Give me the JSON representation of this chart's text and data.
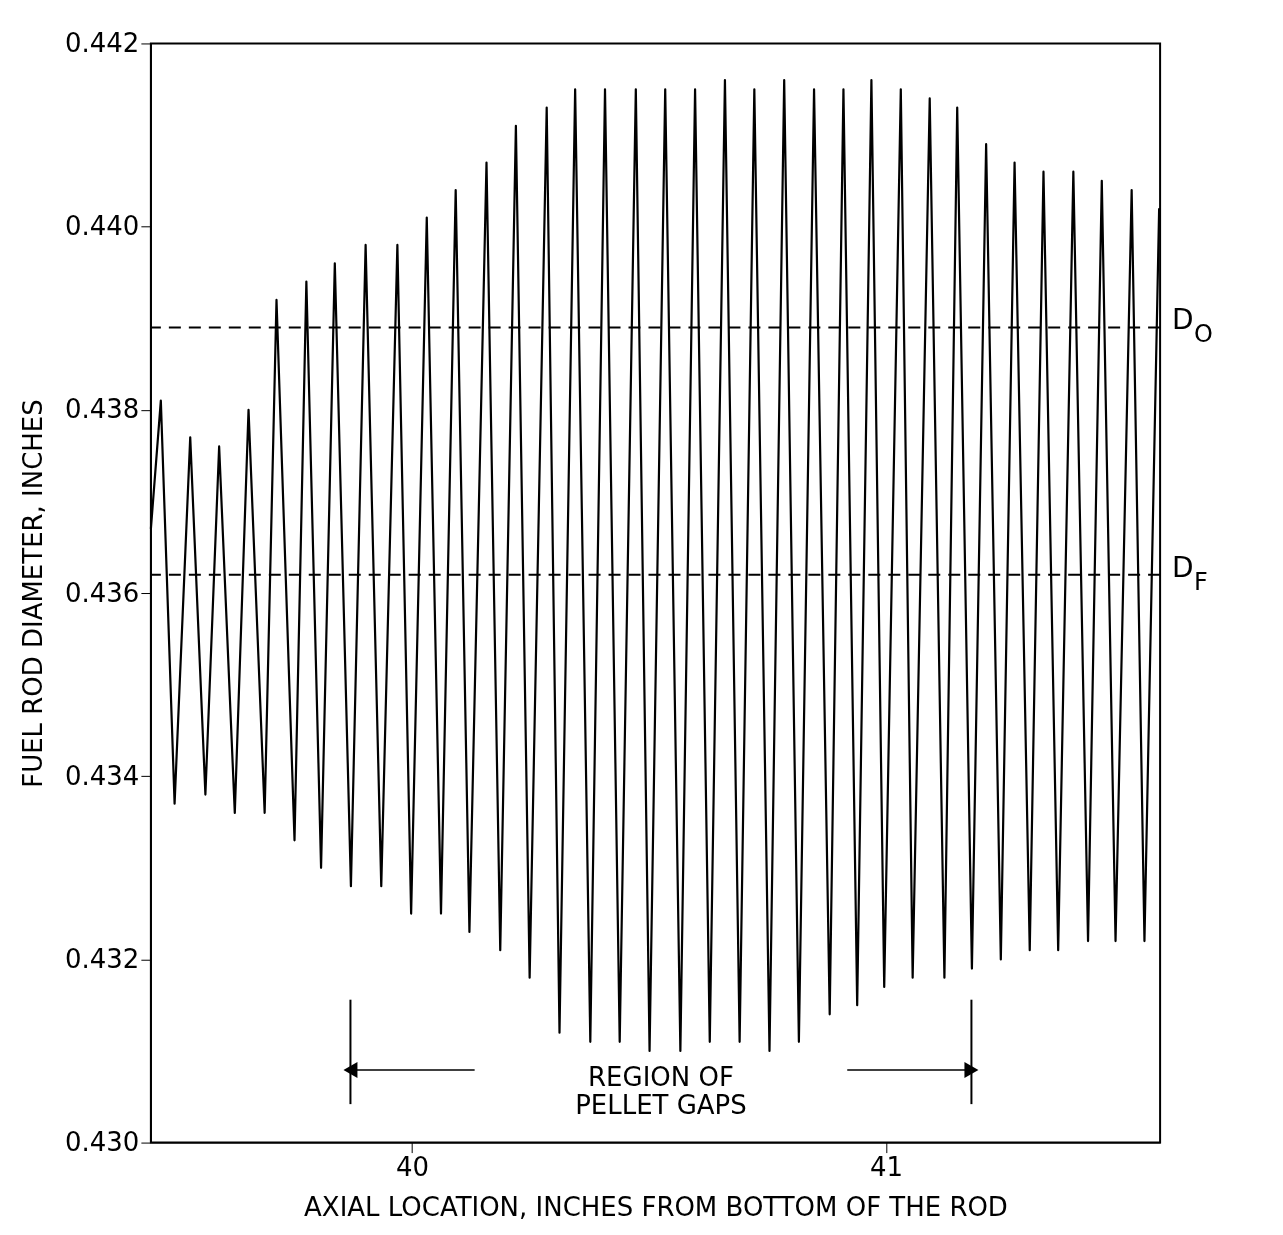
{
  "chart_data": {
    "type": "line",
    "xlabel": "AXIAL LOCATION, INCHES FROM BOTTOM OF THE ROD",
    "ylabel": "FUEL ROD DIAMETER, INCHES",
    "x": [
      39.449,
      39.47,
      39.499,
      39.532,
      39.564,
      39.593,
      39.626,
      39.655,
      39.689,
      39.714,
      39.752,
      39.777,
      39.808,
      39.837,
      39.871,
      39.902,
      39.935,
      39.969,
      39.998,
      40.031,
      40.061,
      40.092,
      40.121,
      40.157,
      40.186,
      40.219,
      40.248,
      40.284,
      40.311,
      40.344,
      40.376,
      40.407,
      40.438,
      40.472,
      40.501,
      40.534,
      40.566,
      40.597,
      40.628,
      40.66,
      40.691,
      40.722,
      40.754,
      40.785,
      40.816,
      40.848,
      40.881,
      40.91,
      40.939,
      40.969,
      40.996,
      41.031,
      41.056,
      41.092,
      41.123,
      41.15,
      41.181,
      41.211,
      41.242,
      41.271,
      41.303,
      41.332,
      41.363,
      41.395,
      41.426,
      41.455,
      41.484,
      41.518,
      41.545,
      41.576
    ],
    "series": [
      {
        "color": "#000000",
        "values": [
          0.4367,
          0.4381,
          0.4337,
          0.4377,
          0.4338,
          0.4376,
          0.4336,
          0.438,
          0.4336,
          0.4392,
          0.4333,
          0.4394,
          0.433,
          0.4396,
          0.4328,
          0.4398,
          0.4328,
          0.4398,
          0.4325,
          0.4401,
          0.4325,
          0.4404,
          0.4323,
          0.4407,
          0.4321,
          0.4411,
          0.4318,
          0.4413,
          0.4312,
          0.4415,
          0.4311,
          0.4415,
          0.4311,
          0.4415,
          0.431,
          0.4415,
          0.431,
          0.4415,
          0.4311,
          0.4416,
          0.4311,
          0.4415,
          0.431,
          0.4416,
          0.4311,
          0.4415,
          0.4314,
          0.4415,
          0.4315,
          0.4416,
          0.4317,
          0.4415,
          0.4318,
          0.4414,
          0.4318,
          0.4413,
          0.4319,
          0.4409,
          0.432,
          0.4407,
          0.4321,
          0.4406,
          0.4321,
          0.4406,
          0.4322,
          0.4405,
          0.4322,
          0.4404,
          0.4322,
          0.4402
        ]
      }
    ],
    "xlim": [
      39.449,
      41.578
    ],
    "xticks": [
      40,
      41
    ],
    "ylim": [
      0.43,
      0.442
    ],
    "yticks": [
      {
        "value": 0.43,
        "label": "0.430"
      },
      {
        "value": 0.432,
        "label": "0.432"
      },
      {
        "value": 0.434,
        "label": "0.434"
      },
      {
        "value": 0.436,
        "label": "0.436"
      },
      {
        "value": 0.438,
        "label": "0.438"
      },
      {
        "value": 0.44,
        "label": "0.440"
      },
      {
        "value": 0.442,
        "label": "0.442"
      }
    ],
    "ref_lines": [
      {
        "axis": "y",
        "value": 0.4389,
        "label": "D$_{O}$",
        "line_style": "dashed"
      },
      {
        "axis": "y",
        "value": 0.4362,
        "label": "D$_{F}$",
        "line_style": "dashed"
      },
      {
        "axis": "x",
        "value": 39.87,
        "line_style": "solid"
      },
      {
        "axis": "x",
        "value": 41.18,
        "line_style": "solid"
      }
    ],
    "annotations": [
      "REGION OF\nPELLET GAPS"
    ],
    "grid": false,
    "line_style": "solid",
    "marker": "none"
  }
}
